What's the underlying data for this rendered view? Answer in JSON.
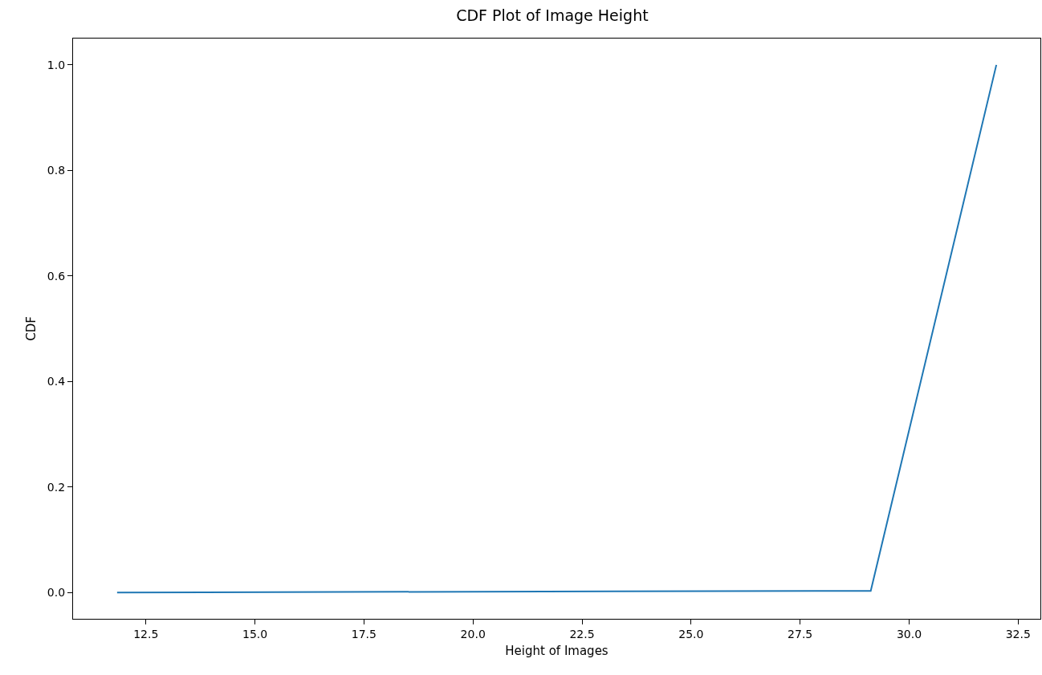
{
  "chart_data": {
    "type": "line",
    "title": "CDF Plot of Image Height",
    "xlabel": "Height of Images",
    "ylabel": "CDF",
    "x": [
      11.84,
      29.12,
      32.0
    ],
    "series": [
      {
        "color": "#1f77b4",
        "values": [
          0.0,
          0.003,
          1.0
        ]
      }
    ],
    "xlim": [
      10.83,
      33.01
    ],
    "xticks": [
      {
        "value": 12.5,
        "label": "12.5"
      },
      {
        "value": 15,
        "label": "15.0"
      },
      {
        "value": 17.5,
        "label": "17.5"
      },
      {
        "value": 20,
        "label": "20.0"
      },
      {
        "value": 22.5,
        "label": "22.5"
      },
      {
        "value": 25,
        "label": "25.0"
      },
      {
        "value": 27.5,
        "label": "27.5"
      },
      {
        "value": 30,
        "label": "30.0"
      },
      {
        "value": 32.5,
        "label": "32.5"
      }
    ],
    "ylim": [
      -0.05,
      1.05
    ],
    "yticks": [
      {
        "value": 0,
        "label": "0.0"
      },
      {
        "value": 0.2,
        "label": "0.2"
      },
      {
        "value": 0.4,
        "label": "0.4"
      },
      {
        "value": 0.6,
        "label": "0.6"
      },
      {
        "value": 0.8,
        "label": "0.8"
      },
      {
        "value": 1,
        "label": "1.0"
      }
    ],
    "grid": false,
    "line_style": "solid",
    "marker": "none"
  }
}
